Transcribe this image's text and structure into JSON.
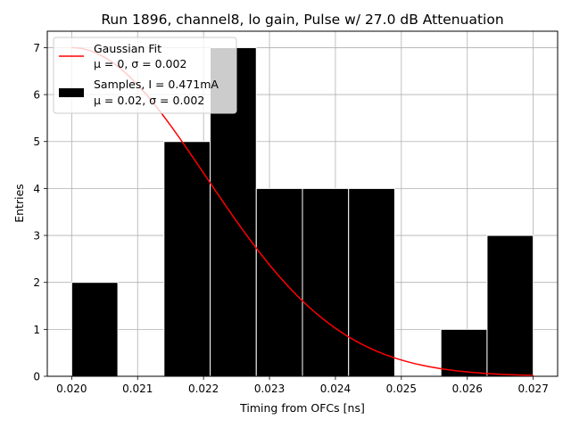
{
  "chart_data": {
    "type": "bar",
    "title": "Run 1896, channel8, lo gain, Pulse w/ 27.0 dB Attenuation",
    "xlabel": "Timing from OFCs [ns]",
    "ylabel": "Entries",
    "xlim": [
      0.01963,
      0.02737
    ],
    "ylim": [
      0,
      7.35
    ],
    "grid": true,
    "legend_position": "top-left",
    "xticks": [
      0.02,
      0.021,
      0.022,
      0.023,
      0.024,
      0.025,
      0.026,
      0.027
    ],
    "xtick_labels": [
      "0.020",
      "0.021",
      "0.022",
      "0.023",
      "0.024",
      "0.025",
      "0.026",
      "0.027"
    ],
    "yticks": [
      0,
      1,
      2,
      3,
      4,
      5,
      6,
      7
    ],
    "ytick_labels": [
      "0",
      "1",
      "2",
      "3",
      "4",
      "5",
      "6",
      "7"
    ],
    "histogram": {
      "name": "Samples, I = 0.471mA",
      "stats": "μ = 0.02, σ = 0.002",
      "color": "#000000",
      "edge_color": "#ffffff",
      "bin_edges": [
        0.02,
        0.0207,
        0.0214,
        0.0221,
        0.0228,
        0.0235,
        0.0242,
        0.0249,
        0.0256,
        0.0263,
        0.027
      ],
      "counts": [
        2,
        0,
        5,
        7,
        4,
        4,
        4,
        0,
        1,
        3
      ]
    },
    "fit": {
      "name": "Gaussian Fit",
      "stats": "μ = 0, σ = 0.002",
      "color": "#ff0000",
      "amplitude": 7.0,
      "mean": 0.02,
      "sigma": 0.00204,
      "x_range": [
        0.02,
        0.027
      ]
    }
  }
}
